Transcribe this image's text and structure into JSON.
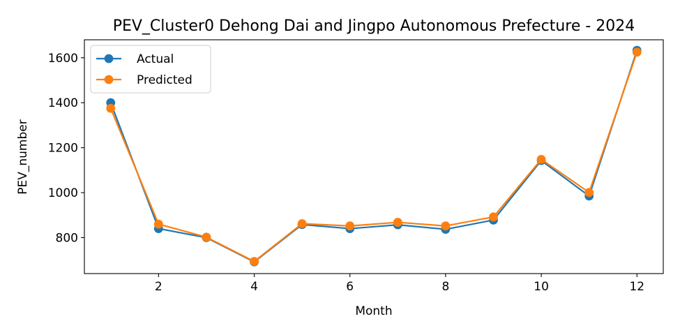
{
  "colors": {
    "actual": "#1f77b4",
    "predicted": "#ff7f0e"
  },
  "chart_data": {
    "type": "line",
    "title": "PEV_Cluster0 Dehong Dai and Jingpo Autonomous Prefecture - 2024",
    "xlabel": "Month",
    "ylabel": "PEV_number",
    "x": [
      1,
      2,
      3,
      4,
      5,
      6,
      7,
      8,
      9,
      10,
      11,
      12
    ],
    "xlim": [
      0.45,
      12.55
    ],
    "ylim": [
      640,
      1680
    ],
    "xticks": [
      2,
      4,
      6,
      8,
      10,
      12
    ],
    "yticks": [
      800,
      1000,
      1200,
      1400,
      1600
    ],
    "grid": false,
    "legend": "top-left",
    "series": [
      {
        "name": "Actual",
        "color": "#1f77b4",
        "marker": "circle",
        "values": [
          1400,
          840,
          800,
          692,
          858,
          840,
          857,
          837,
          878,
          1143,
          985,
          1633
        ]
      },
      {
        "name": "Predicted",
        "color": "#ff7f0e",
        "marker": "circle",
        "values": [
          1375,
          860,
          802,
          694,
          862,
          852,
          868,
          852,
          892,
          1148,
          1001,
          1625
        ]
      }
    ]
  }
}
